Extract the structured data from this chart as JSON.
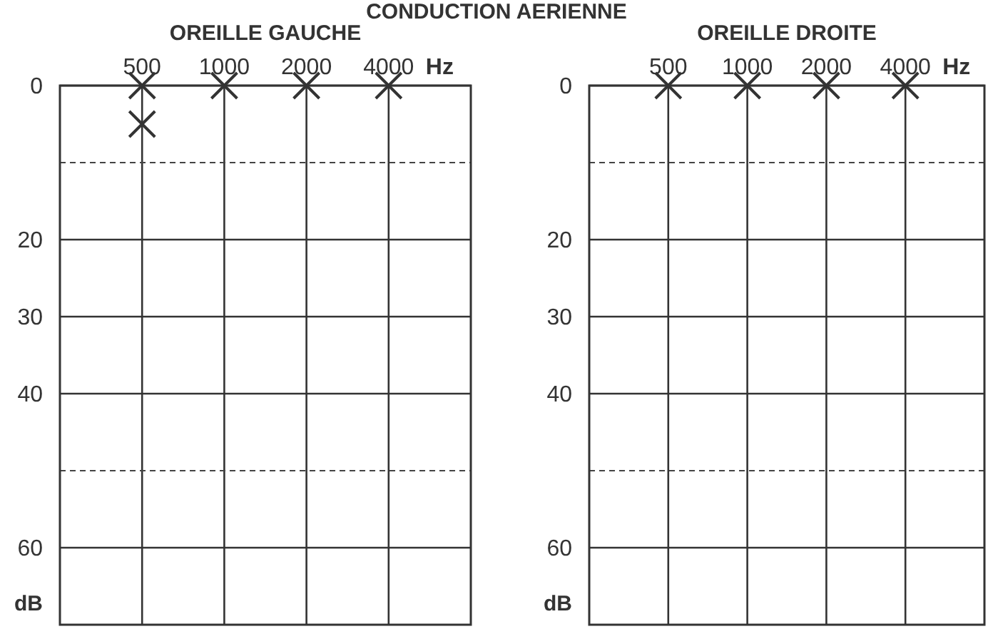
{
  "chart_data": [
    {
      "type": "scatter",
      "title": "OREILLE GAUCHE",
      "xlabel": "Hz",
      "ylabel": "dB",
      "annotations": [
        "CONDUCTION AERIENNE"
      ],
      "categories": [
        "500",
        "1000",
        "2000",
        "4000"
      ],
      "series": [
        {
          "color": "#333333",
          "values": [
            0,
            0,
            0,
            0
          ]
        },
        {
          "color": "#333333",
          "values": [
            5,
            null,
            null,
            null
          ]
        }
      ],
      "ylim": [
        70,
        0
      ],
      "yticks": [
        0,
        20,
        30,
        40,
        60
      ],
      "grid": true,
      "marker": "cross",
      "ref_lines": [
        {
          "axis": "y",
          "value": 10,
          "line_style": "dashed"
        },
        {
          "axis": "y",
          "value": 50,
          "line_style": "dashed"
        }
      ]
    },
    {
      "type": "scatter",
      "title": "OREILLE DROITE",
      "xlabel": "Hz",
      "ylabel": "dB",
      "categories": [
        "500",
        "1000",
        "2000",
        "4000"
      ],
      "series": [
        {
          "color": "#333333",
          "values": [
            0,
            0,
            0,
            0
          ]
        }
      ],
      "ylim": [
        70,
        0
      ],
      "yticks": [
        0,
        20,
        30,
        40,
        60
      ],
      "grid": true,
      "marker": "cross",
      "ref_lines": [
        {
          "axis": "y",
          "value": 10,
          "line_style": "dashed"
        },
        {
          "axis": "y",
          "value": 50,
          "line_style": "dashed"
        }
      ]
    }
  ]
}
